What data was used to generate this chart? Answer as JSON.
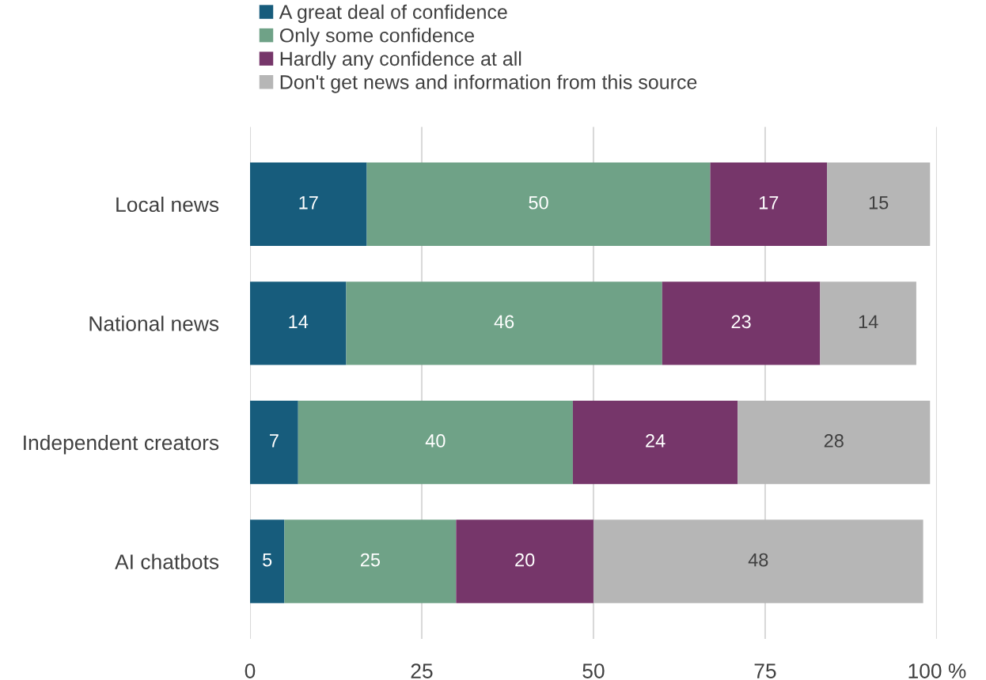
{
  "chart_data": {
    "type": "bar",
    "orientation": "horizontal",
    "stacked": true,
    "categories": [
      "Local news",
      "National news",
      "Independent creators",
      "AI chatbots"
    ],
    "series": [
      {
        "name": "A great deal of confidence",
        "color": "#175c7c",
        "values": [
          17,
          14,
          7,
          5
        ]
      },
      {
        "name": "Only some confidence",
        "color": "#6fa287",
        "values": [
          50,
          46,
          40,
          25
        ]
      },
      {
        "name": "Hardly any confidence at all",
        "color": "#76366a",
        "values": [
          17,
          23,
          24,
          20
        ]
      },
      {
        "name": "Don't get news and information from this source",
        "color": "#b6b6b6",
        "values": [
          15,
          14,
          28,
          48
        ]
      }
    ],
    "xlim": [
      0,
      100
    ],
    "xticks": [
      0,
      25,
      50,
      75,
      {
        "value": 100,
        "label": "100 %"
      }
    ],
    "grid": "x",
    "legend": "top",
    "data_labels": true
  }
}
